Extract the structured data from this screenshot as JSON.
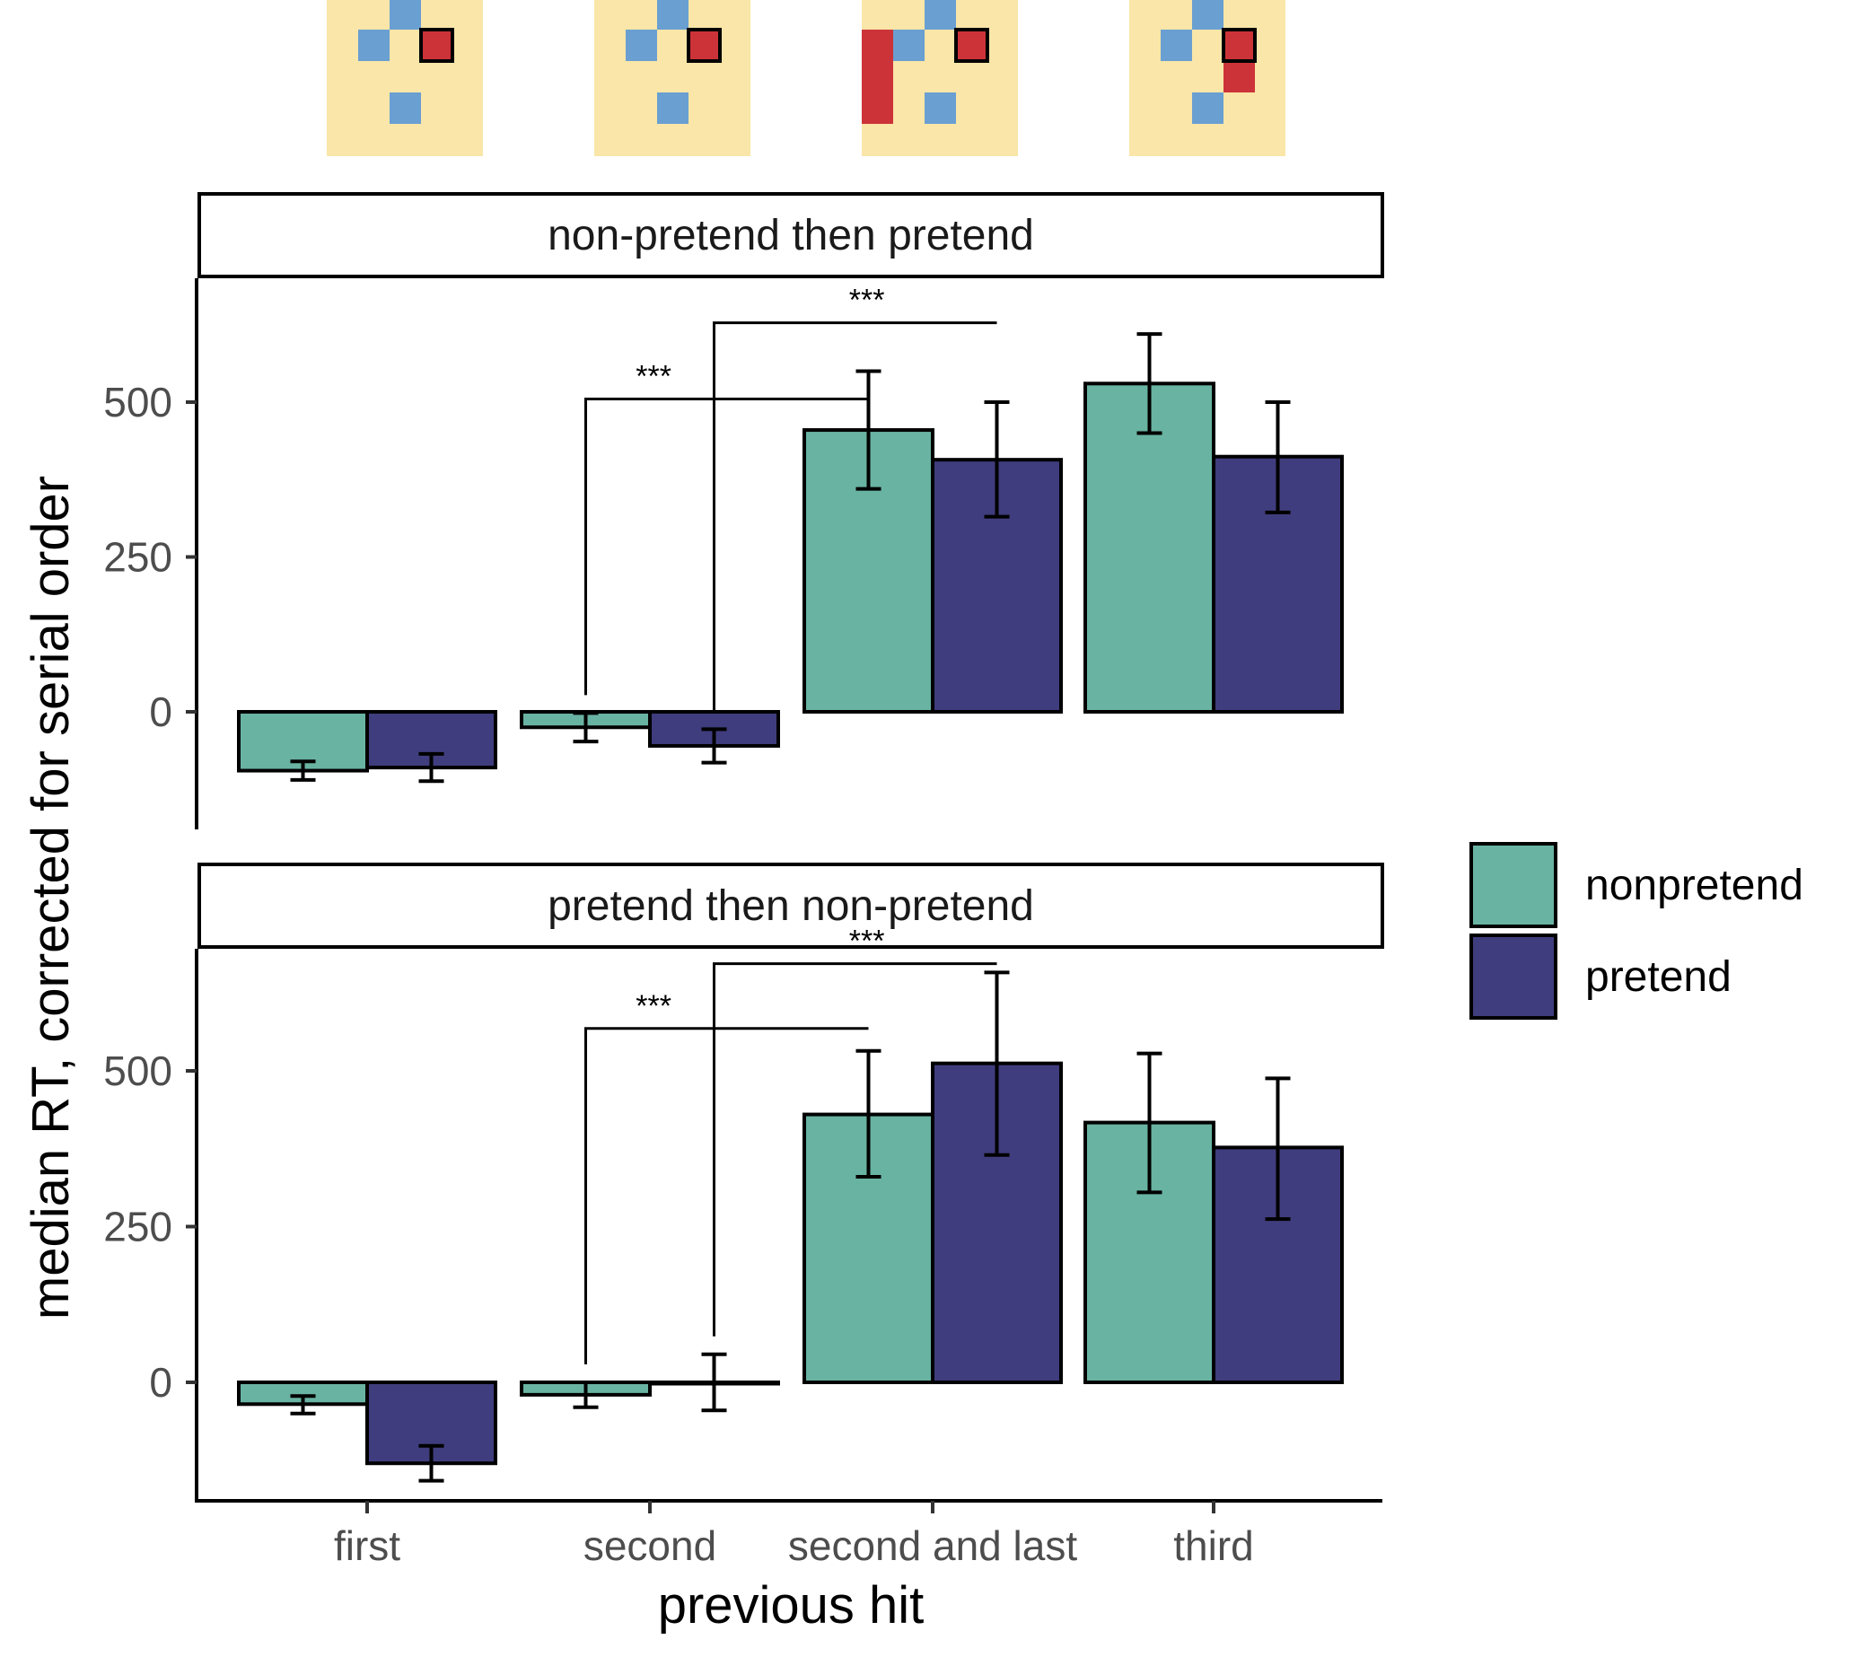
{
  "chart_data": {
    "type": "bar",
    "xlabel": "previous hit",
    "ylabel": "median RT, corrected for serial order",
    "categories": [
      "first",
      "second",
      "second and last",
      "third"
    ],
    "yticks": [
      0,
      250,
      500
    ],
    "ylim": [
      -200,
      700
    ],
    "grid": false,
    "legend_position": "right",
    "legend": [
      {
        "name": "nonpretend",
        "color": "#69b3a2"
      },
      {
        "name": "pretend",
        "color": "#3f3d7d"
      }
    ],
    "panels": [
      {
        "title": "non-pretend then pretend",
        "series": [
          {
            "name": "nonpretend",
            "values": [
              -95,
              -25,
              455,
              530
            ],
            "lower": [
              -110,
              -48,
              360,
              450
            ],
            "upper": [
              -80,
              -2,
              550,
              610
            ]
          },
          {
            "name": "pretend",
            "values": [
              -90,
              -55,
              407,
              412
            ],
            "lower": [
              -112,
              -82,
              315,
              322
            ],
            "upper": [
              -68,
              -28,
              500,
              500
            ]
          }
        ],
        "significance": [
          {
            "label": "***",
            "from": "second",
            "to": "second and last",
            "series_from": "nonpretend",
            "series_to": "nonpretend",
            "bracket_y": 505
          },
          {
            "label": "***",
            "from": "second",
            "to": "second and last",
            "series_from": "pretend",
            "series_to": "pretend",
            "bracket_y": 628
          }
        ]
      },
      {
        "title": "pretend then non-pretend",
        "series": [
          {
            "name": "nonpretend",
            "values": [
              -35,
              -20,
              430,
              417
            ],
            "lower": [
              -50,
              -40,
              330,
              305
            ],
            "upper": [
              -22,
              0,
              532,
              528
            ]
          },
          {
            "name": "pretend",
            "values": [
              -130,
              0,
              512,
              377
            ],
            "lower": [
              -158,
              -45,
              365,
              262
            ],
            "upper": [
              -102,
              45,
              658,
              488
            ]
          }
        ],
        "significance": [
          {
            "label": "***",
            "from": "second",
            "to": "second and last",
            "series_from": "nonpretend",
            "series_to": "nonpretend",
            "bracket_y": 568
          },
          {
            "label": "***",
            "from": "second",
            "to": "second and last",
            "series_from": "pretend",
            "series_to": "pretend",
            "bracket_y": 672
          }
        ]
      }
    ]
  },
  "thumbnails": {
    "background_color": "#f9e6a8",
    "blue_color": "#6a9fd1",
    "red_color": "#cc3338",
    "count": 4
  }
}
